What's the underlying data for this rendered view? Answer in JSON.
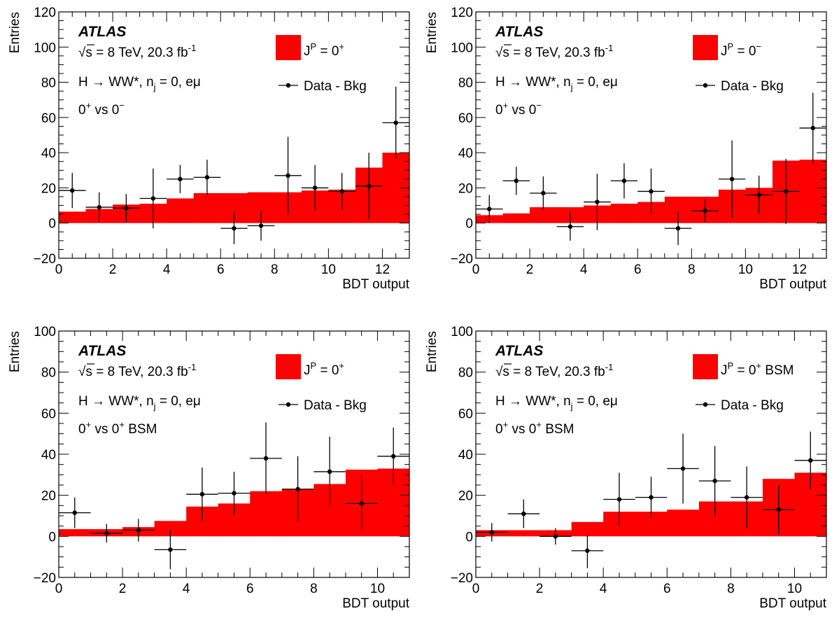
{
  "chart_data": [
    {
      "type": "bar",
      "panel": "top-left",
      "experiment": "ATLAS",
      "annotations": [
        "√s = 8 TeV, 20.3 fb⁻¹",
        "H → WW*, n_j = 0, eμ",
        "0⁺ vs 0⁻"
      ],
      "xlabel": "BDT output",
      "ylabel": "Entries",
      "xlim": [
        0,
        13
      ],
      "ylim": [
        -20,
        120
      ],
      "xticks": [
        0,
        2,
        4,
        6,
        8,
        10,
        12
      ],
      "yticks": [
        -20,
        0,
        20,
        40,
        60,
        80,
        100,
        120
      ],
      "legend": {
        "placement": "top-right",
        "hist_label": "J^P = 0^+",
        "data_label": "Data - Bkg"
      },
      "series": [
        {
          "name": "J^P = 0^+",
          "kind": "histogram",
          "bin_edges": [
            0,
            1,
            2,
            3,
            4,
            5,
            6,
            7,
            8,
            9,
            10,
            11,
            12,
            13
          ],
          "values": [
            6.5,
            8,
            10.5,
            11,
            14,
            17,
            17,
            17.5,
            17.5,
            18.5,
            19,
            31.5,
            40
          ]
        },
        {
          "name": "Data - Bkg",
          "kind": "points",
          "x": [
            0.5,
            1.5,
            2.5,
            3.5,
            4.5,
            5.5,
            6.5,
            7.5,
            8.5,
            9.5,
            10.5,
            11.5,
            12.5
          ],
          "y": [
            18.5,
            9,
            8.5,
            14,
            25,
            26,
            -3,
            -1.5,
            27,
            20,
            18,
            21,
            57
          ],
          "yerr": [
            10,
            8.5,
            8,
            17,
            8,
            10,
            9,
            8.5,
            22,
            13,
            10.5,
            19,
            20.5
          ]
        }
      ]
    },
    {
      "type": "bar",
      "panel": "top-right",
      "experiment": "ATLAS",
      "annotations": [
        "√s = 8 TeV, 20.3 fb⁻¹",
        "H → WW*, n_j = 0, eμ",
        "0⁺ vs 0⁻"
      ],
      "xlabel": "BDT output",
      "ylabel": "Entries",
      "xlim": [
        0,
        13
      ],
      "ylim": [
        -20,
        120
      ],
      "xticks": [
        0,
        2,
        4,
        6,
        8,
        10,
        12
      ],
      "yticks": [
        -20,
        0,
        20,
        40,
        60,
        80,
        100,
        120
      ],
      "legend": {
        "placement": "top-right",
        "hist_label": "J^P = 0^−",
        "data_label": "Data - Bkg"
      },
      "series": [
        {
          "name": "J^P = 0^−",
          "kind": "histogram",
          "bin_edges": [
            0,
            1,
            2,
            3,
            4,
            5,
            6,
            7,
            8,
            9,
            10,
            11,
            12,
            13
          ],
          "values": [
            4.5,
            5.5,
            9,
            9,
            10,
            11,
            12,
            15,
            15,
            19,
            20,
            35.5,
            36
          ]
        },
        {
          "name": "Data - Bkg",
          "kind": "points",
          "x": [
            0.5,
            1.5,
            2.5,
            3.5,
            4.5,
            5.5,
            6.5,
            7.5,
            8.5,
            9.5,
            10.5,
            11.5,
            12.5
          ],
          "y": [
            8,
            24,
            17,
            -2,
            12,
            24,
            18,
            -3,
            7,
            25,
            16,
            18,
            54
          ],
          "yerr": [
            8,
            8,
            9.5,
            8,
            16,
            10,
            13,
            9.5,
            6.5,
            22,
            11,
            18.5,
            20
          ]
        }
      ]
    },
    {
      "type": "bar",
      "panel": "bottom-left",
      "experiment": "ATLAS",
      "annotations": [
        "√s = 8 TeV, 20.3 fb⁻¹",
        "H → WW*, n_j = 0, eμ",
        "0⁺ vs 0⁺ BSM"
      ],
      "xlabel": "BDT output",
      "ylabel": "Entries",
      "xlim": [
        0,
        11
      ],
      "ylim": [
        -20,
        100
      ],
      "xticks": [
        0,
        2,
        4,
        6,
        8,
        10
      ],
      "yticks": [
        -20,
        0,
        20,
        40,
        60,
        80,
        100
      ],
      "legend": {
        "placement": "top-right",
        "hist_label": "J^P = 0^+",
        "data_label": "Data - Bkg"
      },
      "series": [
        {
          "name": "J^P = 0^+",
          "kind": "histogram",
          "bin_edges": [
            0,
            1,
            2,
            3,
            4,
            5,
            6,
            7,
            8,
            9,
            10,
            11
          ],
          "values": [
            3.5,
            3.5,
            4.5,
            7.5,
            14.5,
            16,
            22,
            23,
            25.5,
            32.5,
            33
          ]
        },
        {
          "name": "Data - Bkg",
          "kind": "points",
          "x": [
            0.5,
            1.5,
            2.5,
            3.5,
            4.5,
            5.5,
            6.5,
            7.5,
            8.5,
            9.5,
            10.5
          ],
          "y": [
            11.5,
            1.5,
            3,
            -6.5,
            20.5,
            21,
            38,
            23,
            31.5,
            16,
            39
          ],
          "yerr": [
            7.5,
            4.5,
            5.5,
            9.5,
            13,
            10.5,
            17.5,
            16,
            17,
            14,
            14
          ]
        }
      ]
    },
    {
      "type": "bar",
      "panel": "bottom-right",
      "experiment": "ATLAS",
      "annotations": [
        "√s = 8 TeV, 20.3 fb⁻¹",
        "H → WW*, n_j = 0, eμ",
        "0⁺ vs 0⁺ BSM"
      ],
      "xlabel": "BDT output",
      "ylabel": "Entries",
      "xlim": [
        0,
        11
      ],
      "ylim": [
        -20,
        100
      ],
      "xticks": [
        0,
        2,
        4,
        6,
        8,
        10
      ],
      "yticks": [
        -20,
        0,
        20,
        40,
        60,
        80,
        100
      ],
      "legend": {
        "placement": "top-right",
        "hist_label": "J^P = 0^+ BSM",
        "data_label": "Data - Bkg"
      },
      "series": [
        {
          "name": "J^P = 0^+ BSM",
          "kind": "histogram",
          "bin_edges": [
            0,
            1,
            2,
            3,
            4,
            5,
            6,
            7,
            8,
            9,
            10,
            11
          ],
          "values": [
            3,
            3,
            3,
            7,
            12,
            12,
            13,
            17,
            17,
            28,
            31
          ]
        },
        {
          "name": "Data - Bkg",
          "kind": "points",
          "x": [
            0.5,
            1.5,
            2.5,
            3.5,
            4.5,
            5.5,
            6.5,
            7.5,
            8.5,
            9.5,
            10.5
          ],
          "y": [
            2,
            11,
            0,
            -7,
            18,
            19,
            33,
            27,
            19,
            13,
            37
          ],
          "yerr": [
            4.5,
            7,
            4,
            8.5,
            13,
            10,
            17,
            17,
            15,
            12,
            14
          ]
        }
      ]
    }
  ],
  "colors": {
    "histogram_fill": "#ff0000",
    "data_points": "#000000",
    "frame": "#000000"
  }
}
